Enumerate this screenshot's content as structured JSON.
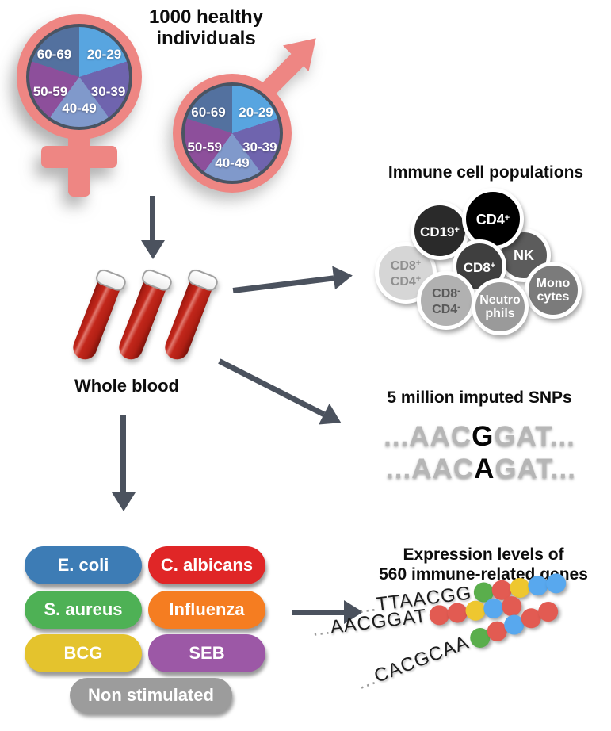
{
  "colors": {
    "salmon": "#ee8683",
    "arrow_gray": "#4b525e",
    "pie_border": "#4a5462",
    "tube_red": "#b4221a"
  },
  "header": {
    "title_line1": "1000 healthy",
    "title_line2": "individuals"
  },
  "demographics": {
    "age_groups": [
      "20-29",
      "30-39",
      "40-49",
      "50-59",
      "60-69"
    ],
    "pie_slice_colors": [
      "#58a5e0",
      "#6f64ae",
      "#8099cb",
      "#8d4f9b",
      "#53719f"
    ]
  },
  "whole_blood": {
    "label": "Whole blood"
  },
  "immune_cells": {
    "title": "Immune cell populations",
    "cells": [
      {
        "id": "cd8pos-cd4pos",
        "lines": [
          {
            "text": "CD8",
            "sup": "+"
          },
          {
            "text": "CD4",
            "sup": "+"
          }
        ],
        "bg": "#d6d6d6",
        "fg": "#8f8f8f"
      },
      {
        "id": "cd19pos",
        "lines": [
          {
            "text": "CD19",
            "sup": "+"
          }
        ],
        "bg": "#2a2a2a",
        "fg": "#ffffff"
      },
      {
        "id": "nk",
        "lines": [
          {
            "text": "NK",
            "sup": ""
          }
        ],
        "bg": "#5c5c5c",
        "fg": "#ffffff"
      },
      {
        "id": "cd4pos",
        "lines": [
          {
            "text": "CD4",
            "sup": "+"
          }
        ],
        "bg": "#000000",
        "fg": "#ffffff"
      },
      {
        "id": "monocytes",
        "lines": [
          {
            "text": "Mono",
            "sup": ""
          },
          {
            "text": "cytes",
            "sup": ""
          }
        ],
        "bg": "#7b7b7b",
        "fg": "#ffffff"
      },
      {
        "id": "cd8pos",
        "lines": [
          {
            "text": "CD8",
            "sup": "+"
          }
        ],
        "bg": "#3f3f3f",
        "fg": "#ffffff"
      },
      {
        "id": "cd8neg-cd4neg",
        "lines": [
          {
            "text": "CD8",
            "sup": "-"
          },
          {
            "text": "CD4",
            "sup": "-"
          }
        ],
        "bg": "#b1b1b1",
        "fg": "#5a5a5a"
      },
      {
        "id": "neutrophils",
        "lines": [
          {
            "text": "Neutro",
            "sup": ""
          },
          {
            "text": "phils",
            "sup": ""
          }
        ],
        "bg": "#9a9a9a",
        "fg": "#ffffff"
      }
    ]
  },
  "snps": {
    "title": "5 million imputed SNPs",
    "sequences": [
      {
        "prefix": "...AAC",
        "variant": "G",
        "suffix": "GAT..."
      },
      {
        "prefix": "...AAC",
        "variant": "A",
        "suffix": "GAT..."
      }
    ]
  },
  "stimuli": {
    "items": [
      {
        "label": "E. coli",
        "color": "#3d7cb5"
      },
      {
        "label": "C. albicans",
        "color": "#e02627"
      },
      {
        "label": "S. aureus",
        "color": "#4eb155"
      },
      {
        "label": "Influenza",
        "color": "#f57d21"
      },
      {
        "label": "BCG",
        "color": "#e4c32d"
      },
      {
        "label": "SEB",
        "color": "#9c58a6"
      },
      {
        "label": "Non stimulated",
        "color": "#9c9c9c"
      }
    ]
  },
  "expression": {
    "title_line1": "Expression levels of",
    "title_line2": "560 immune-related genes",
    "dot_colors": {
      "green": "#5aae4c",
      "red": "#e25b52",
      "yellow": "#eec72f",
      "blue": "#58a8ee"
    },
    "rows": [
      {
        "prefix": "...",
        "seq": "TTAACGG",
        "dots": [
          "green",
          "red",
          "yellow",
          "blue",
          "blue"
        ]
      },
      {
        "prefix": "...",
        "seq": "AACGGAT",
        "dots": [
          "red",
          "red",
          "yellow",
          "blue",
          "red"
        ]
      },
      {
        "prefix": "...",
        "seq": "CACGCAA",
        "dots": [
          "green",
          "red",
          "blue",
          "red",
          "red"
        ]
      }
    ]
  }
}
